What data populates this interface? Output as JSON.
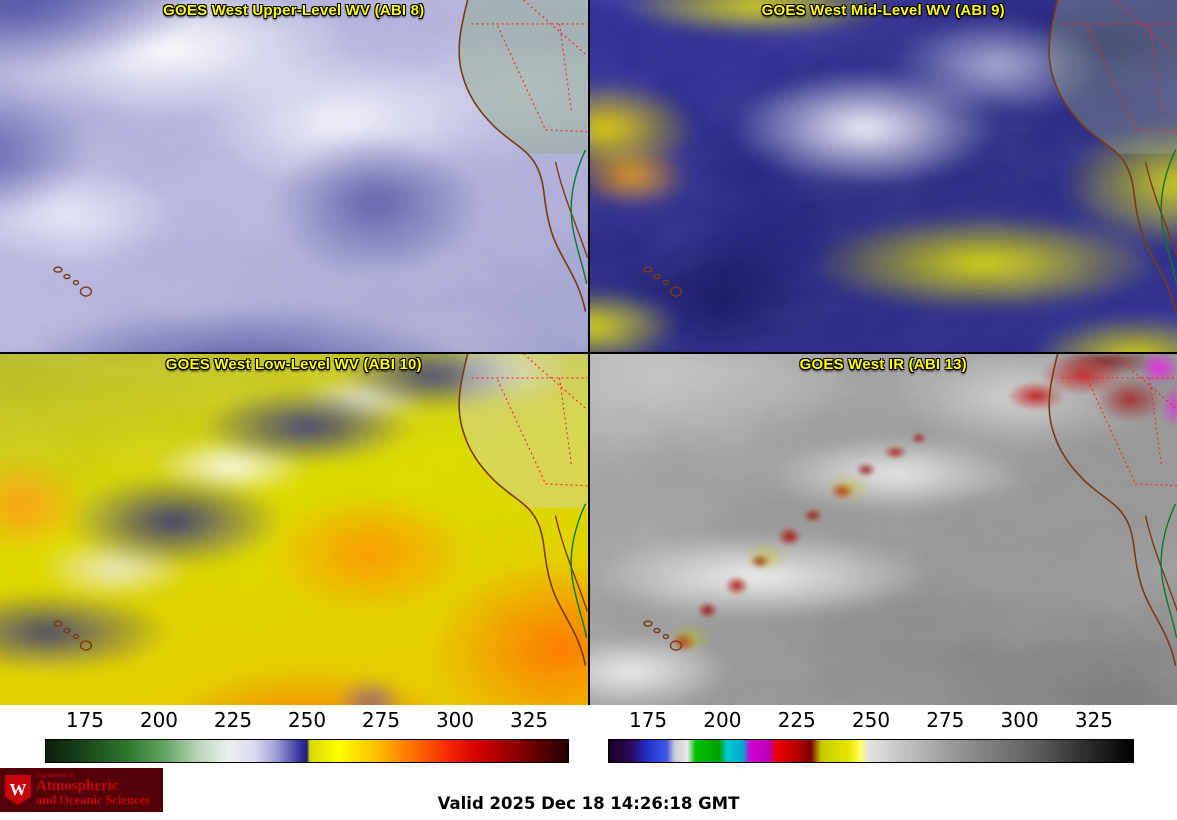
{
  "panels": [
    {
      "id": "abi8",
      "title": "GOES West Upper-Level WV (ABI 8)"
    },
    {
      "id": "abi9",
      "title": "GOES West Mid-Level WV (ABI 9)"
    },
    {
      "id": "abi10",
      "title": "GOES West Low-Level WV (ABI 10)"
    },
    {
      "id": "abi13",
      "title": "GOES West IR (ABI 13)"
    }
  ],
  "panel_title_color": "#ffff00",
  "colorbars": [
    {
      "name": "water-vapor-colorbar",
      "ticks": [
        "175",
        "200",
        "225",
        "250",
        "275",
        "300",
        "325"
      ],
      "stops": [
        {
          "c": "#0b1d0b",
          "p": 0
        },
        {
          "c": "#1c4a1c",
          "p": 8
        },
        {
          "c": "#2f7a2f",
          "p": 16
        },
        {
          "c": "#66a766",
          "p": 23
        },
        {
          "c": "#b7d4b7",
          "p": 29
        },
        {
          "c": "#eef0ee",
          "p": 35
        },
        {
          "c": "#d9d9ef",
          "p": 40
        },
        {
          "c": "#a0a0d6",
          "p": 44
        },
        {
          "c": "#5b5bb3",
          "p": 47
        },
        {
          "c": "#2e2e96",
          "p": 49
        },
        {
          "c": "#1f1f7d",
          "p": 50
        },
        {
          "c": "#d6d600",
          "p": 50.5
        },
        {
          "c": "#ffff00",
          "p": 56
        },
        {
          "c": "#ffc300",
          "p": 63
        },
        {
          "c": "#ff7300",
          "p": 70
        },
        {
          "c": "#f52900",
          "p": 77
        },
        {
          "c": "#cf0000",
          "p": 83
        },
        {
          "c": "#8f0000",
          "p": 90
        },
        {
          "c": "#4d0000",
          "p": 96
        },
        {
          "c": "#240000",
          "p": 100
        }
      ]
    },
    {
      "name": "infrared-colorbar",
      "ticks": [
        "175",
        "200",
        "225",
        "250",
        "275",
        "300",
        "325"
      ],
      "stops": [
        {
          "c": "#170126",
          "p": 0
        },
        {
          "c": "#2b0a55",
          "p": 4
        },
        {
          "c": "#1f2bbf",
          "p": 7
        },
        {
          "c": "#3f5ae6",
          "p": 11
        },
        {
          "c": "#c9c9cf",
          "p": 12.5
        },
        {
          "c": "#e9e9ec",
          "p": 15
        },
        {
          "c": "#00c400",
          "p": 16.5
        },
        {
          "c": "#009e00",
          "p": 21
        },
        {
          "c": "#00c9c9",
          "p": 22.5
        },
        {
          "c": "#00aad6",
          "p": 25.5
        },
        {
          "c": "#d400d4",
          "p": 27
        },
        {
          "c": "#b800b8",
          "p": 30.5
        },
        {
          "c": "#ef0000",
          "p": 32
        },
        {
          "c": "#b30000",
          "p": 36
        },
        {
          "c": "#7a0000",
          "p": 38.5
        },
        {
          "c": "#c9c900",
          "p": 40.5
        },
        {
          "c": "#e8e800",
          "p": 46
        },
        {
          "c": "#ffff66",
          "p": 48
        },
        {
          "c": "#e2e2e2",
          "p": 49.5
        },
        {
          "c": "#9b9b9b",
          "p": 65
        },
        {
          "c": "#5b5b5b",
          "p": 82
        },
        {
          "c": "#000000",
          "p": 100
        }
      ]
    }
  ],
  "footer": {
    "valid_label": "Valid 2025 Dec 18 14:26:18 GMT",
    "logo": {
      "bg": "#530008",
      "accent": "#c5050c",
      "text_color": "#c5050c",
      "crest_letter": "W",
      "dept": "Department of",
      "line1": "Atmospheric",
      "line2": "and Oceanic Sciences"
    }
  }
}
